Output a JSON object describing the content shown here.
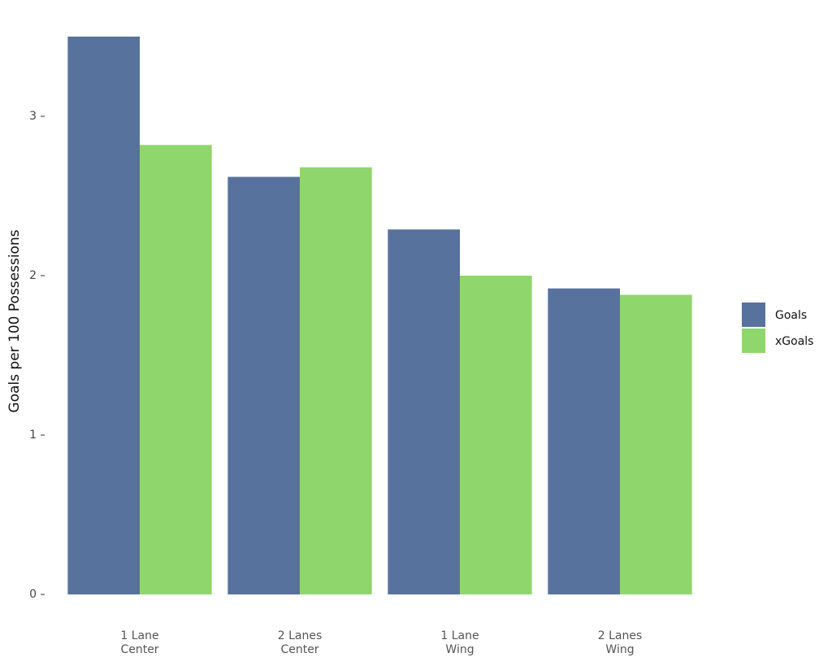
{
  "chart_data": {
    "type": "bar",
    "y_label": "Goals per 100 Possessions",
    "categories": [
      "1 Lane\nCenter",
      "2 Lanes\nCenter",
      "1 Lane\nWing",
      "2 Lanes\nWing"
    ],
    "series": [
      {
        "name": "Goals",
        "color": "#58729e",
        "values": [
          3.5,
          2.62,
          2.29,
          1.92
        ]
      },
      {
        "name": "xGoals",
        "color": "#8fd76c",
        "values": [
          2.82,
          2.68,
          2.0,
          1.88
        ]
      }
    ],
    "ylim": [
      0,
      3.5
    ],
    "yticks": [
      0,
      1,
      2,
      3
    ],
    "grid": false,
    "legend": "right"
  }
}
